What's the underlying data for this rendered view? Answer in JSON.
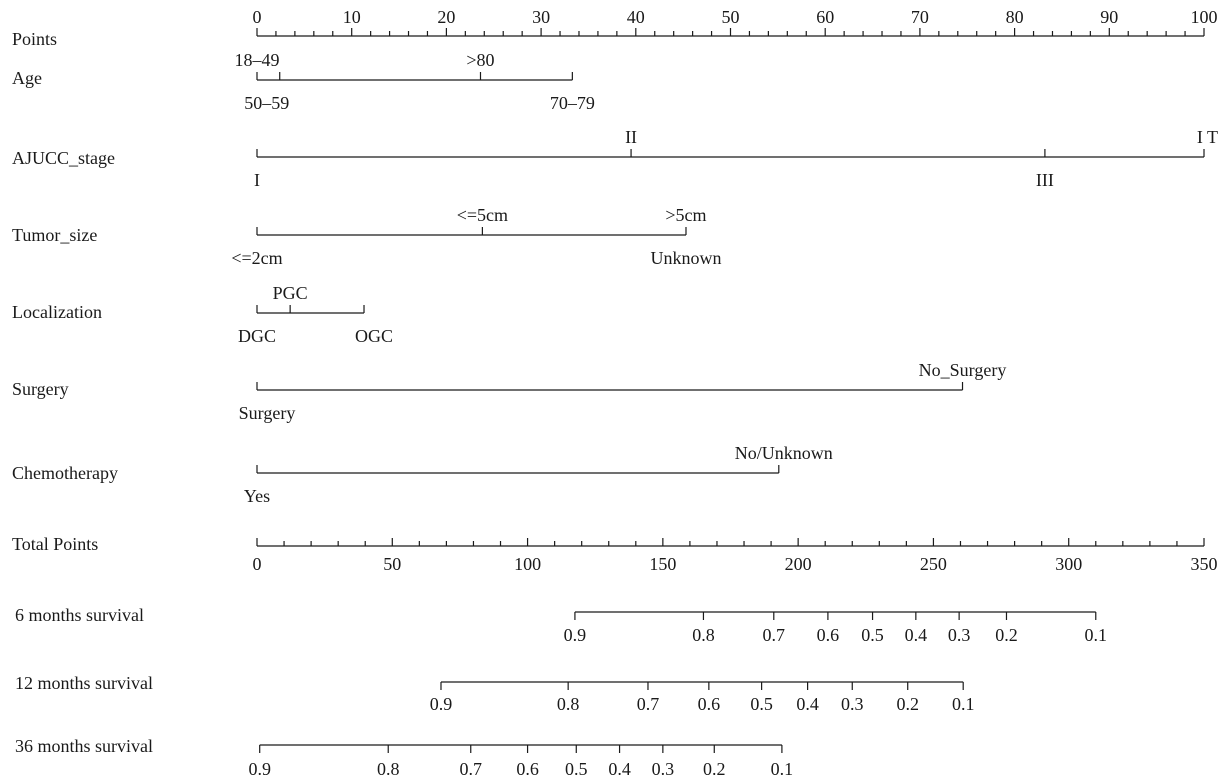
{
  "chart_data": {
    "type": "nomogram",
    "points_scale": {
      "label": "Points",
      "min": 0,
      "max": 100,
      "major_ticks": [
        0,
        10,
        20,
        30,
        40,
        50,
        60,
        70,
        80,
        90,
        100
      ],
      "minor_step": 2
    },
    "variables": [
      {
        "name": "Age",
        "range": [
          0,
          33.3
        ],
        "levels": [
          {
            "label": "18–49",
            "points": 0
          },
          {
            "label": "50–59",
            "points": 2.4
          },
          {
            "label": ">80",
            "points": 23.6
          },
          {
            "label": "70–79",
            "points": 33.3
          }
        ]
      },
      {
        "name": "AJUCC_stage",
        "range": [
          0,
          100
        ],
        "levels": [
          {
            "label": "I",
            "points": 0
          },
          {
            "label": "II",
            "points": 39.5
          },
          {
            "label": "III",
            "points": 83.2
          },
          {
            "label": "I T",
            "points": 100
          }
        ]
      },
      {
        "name": "Tumor_size",
        "range": [
          0,
          45.3
        ],
        "levels": [
          {
            "label": "<=2cm",
            "points": 0
          },
          {
            "label": "<=5cm",
            "points": 23.8
          },
          {
            "label": ">5cm",
            "points": 45.3
          },
          {
            "label": "Unknown",
            "points": 45.3
          }
        ]
      },
      {
        "name": "Localization",
        "range": [
          0,
          11.3
        ],
        "levels": [
          {
            "label": "DGC",
            "points": 0
          },
          {
            "label": "PGC",
            "points": 3.5
          },
          {
            "label": "OGC",
            "points": 11.3
          }
        ]
      },
      {
        "name": "Surgery",
        "range": [
          0,
          74.5
        ],
        "levels": [
          {
            "label": "Surgery",
            "points": 0
          },
          {
            "label": "No_Surgery",
            "points": 74.5
          }
        ]
      },
      {
        "name": "Chemotherapy",
        "range": [
          0,
          55.1
        ],
        "levels": [
          {
            "label": "Yes",
            "points": 0
          },
          {
            "label": "No/Unknown",
            "points": 55.1
          }
        ]
      }
    ],
    "total_points_scale": {
      "label": "Total Points",
      "min": 0,
      "max": 350,
      "major_ticks": [
        0,
        50,
        100,
        150,
        200,
        250,
        300,
        350
      ],
      "minor_step": 10
    },
    "survival_scales": [
      {
        "label": "6 months survival",
        "ticks": [
          {
            "p": "0.9",
            "total": 117.5
          },
          {
            "p": "0.8",
            "total": 165
          },
          {
            "p": "0.7",
            "total": 191
          },
          {
            "p": "0.6",
            "total": 211
          },
          {
            "p": "0.5",
            "total": 227.5
          },
          {
            "p": "0.4",
            "total": 243.5
          },
          {
            "p": "0.3",
            "total": 259.5
          },
          {
            "p": "0.2",
            "total": 277
          },
          {
            "p": "0.1",
            "total": 310
          }
        ]
      },
      {
        "label": "12 months survival",
        "ticks": [
          {
            "p": "0.9",
            "total": 68
          },
          {
            "p": "0.8",
            "total": 115
          },
          {
            "p": "0.7",
            "total": 144.5
          },
          {
            "p": "0.6",
            "total": 167
          },
          {
            "p": "0.5",
            "total": 186.5
          },
          {
            "p": "0.4",
            "total": 203.5
          },
          {
            "p": "0.3",
            "total": 220
          },
          {
            "p": "0.2",
            "total": 240.5
          },
          {
            "p": "0.1",
            "total": 261
          }
        ]
      },
      {
        "label": "36 months survival",
        "ticks": [
          {
            "p": "0.9",
            "total": 1
          },
          {
            "p": "0.8",
            "total": 48.5
          },
          {
            "p": "0.7",
            "total": 79
          },
          {
            "p": "0.6",
            "total": 100
          },
          {
            "p": "0.5",
            "total": 118
          },
          {
            "p": "0.4",
            "total": 134
          },
          {
            "p": "0.3",
            "total": 150
          },
          {
            "p": "0.2",
            "total": 169
          },
          {
            "p": "0.1",
            "total": 194
          }
        ]
      }
    ]
  }
}
